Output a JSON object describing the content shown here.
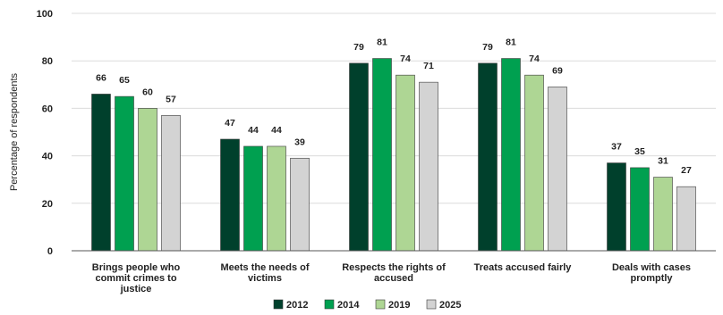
{
  "chart_data": {
    "type": "bar",
    "title": "",
    "xlabel": "",
    "ylabel": "Percentage of respondents",
    "ylim": [
      0,
      100
    ],
    "yticks": [
      0,
      20,
      40,
      60,
      80,
      100
    ],
    "grid": true,
    "legend_position": "bottom",
    "categories": [
      [
        "Brings people who",
        "commit crimes to",
        "justice"
      ],
      [
        "Meets the needs of",
        "victims"
      ],
      [
        "Respects the rights of",
        "accused"
      ],
      [
        "Treats accused fairly"
      ],
      [
        "Deals with cases",
        "promptly"
      ]
    ],
    "series": [
      {
        "name": "2012",
        "color": "#00402c",
        "values": [
          66,
          47,
          79,
          79,
          37
        ]
      },
      {
        "name": "2014",
        "color": "#00a050",
        "values": [
          65,
          44,
          81,
          81,
          35
        ]
      },
      {
        "name": "2019",
        "color": "#aed694",
        "values": [
          60,
          44,
          74,
          74,
          31
        ]
      },
      {
        "name": "2025",
        "color": "#d3d3d3",
        "values": [
          57,
          39,
          71,
          69,
          27
        ]
      }
    ]
  }
}
